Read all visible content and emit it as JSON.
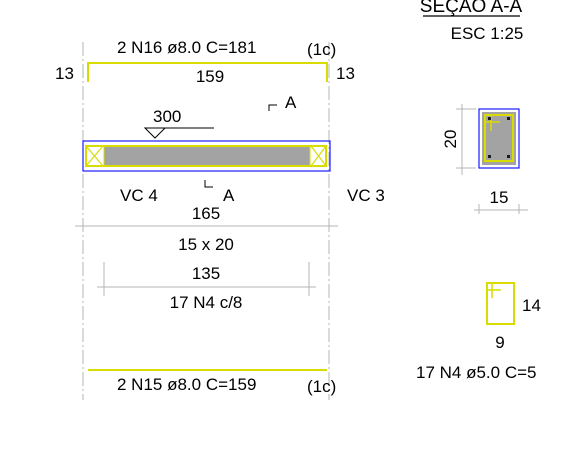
{
  "section_title": "SEÇÃO A-A",
  "section_scale": "ESC 1:25",
  "top_bar": {
    "label": "2 N16 ø8.0 C=181",
    "suffix": "(1c)",
    "left_hook": "13",
    "length": "159",
    "right_hook": "13"
  },
  "beam": {
    "width_label": "300",
    "cut_mark_top": "A",
    "cut_mark_bottom": "A",
    "left_support": "VC 4",
    "right_support": "VC 3",
    "span": "165",
    "section_size": "15 x 20",
    "stirrup_zone_length": "135",
    "stirrup_spacing": "17 N4 c/8"
  },
  "bottom_bar": {
    "label": "2 N15 ø8.0 C=159",
    "suffix": "(1c)"
  },
  "cross_section": {
    "height": "20",
    "width": "15"
  },
  "stirrup_detail": {
    "height": "14",
    "width": "9",
    "label": "17 N4 ø5.0 C=5"
  },
  "colors": {
    "rebar": "#d8dc00",
    "concrete": "#a3a3a3",
    "outline": "#1a1aff",
    "dimension": "#b4b4b4"
  }
}
